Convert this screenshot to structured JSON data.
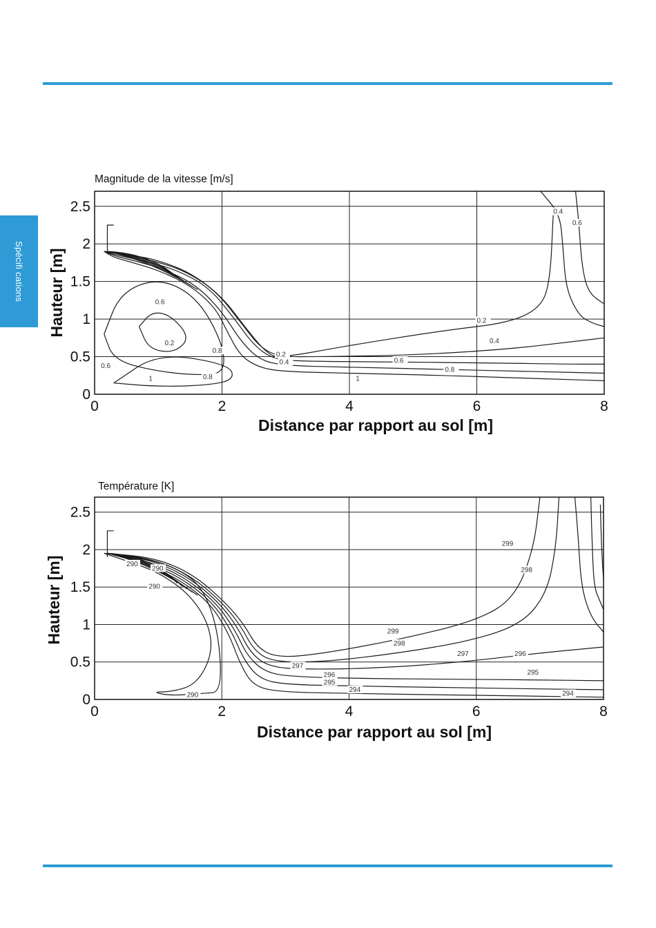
{
  "page": {
    "accent_color": "#2e9bd6",
    "side_tab_label": "Spécifi cations"
  },
  "chart_data": [
    {
      "type": "contour",
      "title": "Magnitude de la vitesse [m/s]",
      "xlabel": "Distance par rapport au sol [m]",
      "ylabel": "Hauteur [m]",
      "xlim": [
        0,
        8
      ],
      "ylim": [
        0,
        2.7
      ],
      "xticks": [
        "0",
        "2",
        "4",
        "6",
        "8"
      ],
      "yticks": [
        "0",
        "0.5",
        "1",
        "1.5",
        "2",
        "2.5"
      ],
      "grid": true,
      "contour_labels": [
        "0.4",
        "0.6",
        "0.2",
        "0.6",
        "0.8",
        "0.2",
        "0.4",
        "0.6",
        "0.8",
        "1",
        "0.2",
        "0.4",
        "0.6",
        "0.8",
        "1"
      ],
      "contours": [
        {
          "level": 0.2,
          "x": [
            0.7,
            0.9,
            1.2,
            1.5,
            1.25,
            0.85,
            0.7
          ],
          "y": [
            0.9,
            1.1,
            1.05,
            0.75,
            0.55,
            0.6,
            0.9
          ]
        },
        {
          "level": 0.6,
          "x": [
            0.15,
            0.4,
            1.0,
            1.6,
            2.0,
            2.05,
            1.7,
            1.0,
            0.3,
            0.15
          ],
          "y": [
            0.8,
            1.35,
            1.55,
            1.3,
            0.7,
            0.3,
            0.25,
            0.3,
            0.45,
            0.8
          ]
        },
        {
          "level": 0.8,
          "x": [
            0.3,
            1.0,
            1.8,
            2.2,
            2.1,
            1.0,
            0.3
          ],
          "y": [
            0.15,
            0.1,
            0.12,
            0.2,
            0.4,
            0.55,
            0.15
          ]
        },
        {
          "level": 1.0,
          "x": [
            0.15,
            0.3,
            0.6,
            1.0,
            1.5,
            1.9,
            2.1,
            2.3,
            2.6,
            3.0,
            4.0,
            5.5,
            6.5,
            7.3,
            8.0
          ],
          "y": [
            1.9,
            1.82,
            1.75,
            1.65,
            1.45,
            1.15,
            0.8,
            0.5,
            0.35,
            0.3,
            0.28,
            0.25,
            0.22,
            0.2,
            0.18
          ]
        },
        {
          "level": 0.8,
          "x": [
            0.15,
            0.35,
            0.7,
            1.1,
            1.6,
            2.0,
            2.3,
            2.6,
            3.0,
            4.0,
            5.5,
            7.0,
            8.0
          ],
          "y": [
            1.9,
            1.83,
            1.76,
            1.66,
            1.45,
            1.1,
            0.7,
            0.45,
            0.38,
            0.36,
            0.33,
            0.3,
            0.28
          ]
        },
        {
          "level": 0.6,
          "x": [
            0.15,
            0.4,
            0.8,
            1.3,
            1.8,
            2.2,
            2.5,
            2.8,
            3.2,
            4.5,
            6.0,
            7.5,
            8.0
          ],
          "y": [
            1.9,
            1.84,
            1.77,
            1.65,
            1.42,
            1.0,
            0.65,
            0.47,
            0.44,
            0.43,
            0.42,
            0.4,
            0.4
          ]
        },
        {
          "level": 0.4,
          "x": [
            0.15,
            0.5,
            0.9,
            1.4,
            1.9,
            2.3,
            2.6,
            2.9,
            3.5,
            5.0,
            6.5,
            7.5,
            8.0
          ],
          "y": [
            1.9,
            1.85,
            1.78,
            1.65,
            1.38,
            0.95,
            0.62,
            0.5,
            0.5,
            0.52,
            0.6,
            0.7,
            0.75
          ]
        },
        {
          "level": 0.2,
          "x": [
            0.15,
            0.6,
            1.0,
            1.5,
            2.0,
            2.4,
            2.7,
            2.9,
            4.0,
            5.5,
            6.5,
            7.0,
            7.15,
            7.2
          ],
          "y": [
            1.9,
            1.85,
            1.78,
            1.62,
            1.3,
            0.85,
            0.55,
            0.48,
            0.65,
            0.85,
            0.95,
            1.15,
            1.5,
            2.4
          ]
        },
        {
          "level": 0.4,
          "x": [
            7.0,
            7.3,
            7.35,
            7.4,
            7.6,
            7.8,
            8.0
          ],
          "y": [
            2.7,
            2.4,
            2.0,
            1.4,
            1.05,
            0.95,
            0.9
          ]
        },
        {
          "level": 0.6,
          "x": [
            7.55,
            7.6,
            7.65,
            7.75,
            8.0
          ],
          "y": [
            2.7,
            2.3,
            1.7,
            1.35,
            1.2
          ]
        }
      ]
    },
    {
      "type": "contour",
      "title": "Température [K]",
      "xlabel": "Distance par rapport au sol [m]",
      "ylabel": "Hauteur [m]",
      "xlim": [
        0,
        8
      ],
      "ylim": [
        0,
        2.7
      ],
      "xticks": [
        "0",
        "2",
        "4",
        "6",
        "8"
      ],
      "yticks": [
        "0",
        "0.5",
        "1",
        "1.5",
        "2",
        "2.5"
      ],
      "grid": true,
      "contour_labels": [
        "299",
        "298",
        "297",
        "296",
        "295",
        "294",
        "299",
        "298",
        "297",
        "296",
        "295",
        "294",
        "290",
        "290",
        "290",
        "290"
      ],
      "contours": [
        {
          "level": 290,
          "x": [
            0.15,
            0.5,
            1.0,
            1.5,
            1.8,
            1.85,
            1.6,
            1.2,
            0.9,
            1.2,
            1.7,
            2.0,
            1.95,
            1.7,
            1.3,
            0.8,
            0.4,
            0.15
          ],
          "y": [
            1.95,
            1.85,
            1.7,
            1.4,
            1.0,
            0.6,
            0.2,
            0.1,
            0.1,
            0.05,
            0.08,
            0.1,
            0.9,
            1.5,
            1.75,
            1.88,
            1.93,
            1.95
          ]
        },
        {
          "level": 294,
          "x": [
            0.2,
            0.7,
            1.3,
            1.8,
            2.1,
            2.3,
            2.5,
            2.9,
            4.0,
            5.5,
            6.5,
            7.2,
            8.0
          ],
          "y": [
            1.95,
            1.84,
            1.62,
            1.3,
            0.9,
            0.45,
            0.18,
            0.1,
            0.08,
            0.06,
            0.05,
            0.04,
            0.03
          ]
        },
        {
          "level": 295,
          "x": [
            0.2,
            0.75,
            1.35,
            1.85,
            2.15,
            2.35,
            2.6,
            3.0,
            4.0,
            5.5,
            7.0,
            8.0
          ],
          "y": [
            1.95,
            1.85,
            1.63,
            1.3,
            0.92,
            0.52,
            0.27,
            0.2,
            0.18,
            0.16,
            0.14,
            0.13
          ]
        },
        {
          "level": 296,
          "x": [
            0.2,
            0.8,
            1.4,
            1.9,
            2.2,
            2.4,
            2.7,
            3.2,
            4.2,
            5.6,
            7.0,
            8.0
          ],
          "y": [
            1.95,
            1.86,
            1.64,
            1.3,
            0.94,
            0.58,
            0.35,
            0.3,
            0.28,
            0.27,
            0.26,
            0.25
          ]
        },
        {
          "level": 297,
          "x": [
            0.2,
            0.85,
            1.45,
            1.95,
            2.25,
            2.45,
            2.75,
            3.4,
            4.5,
            5.8,
            7.0,
            8.0
          ],
          "y": [
            1.95,
            1.87,
            1.65,
            1.3,
            0.96,
            0.62,
            0.43,
            0.4,
            0.42,
            0.5,
            0.62,
            0.7
          ]
        },
        {
          "level": 298,
          "x": [
            0.2,
            0.9,
            1.5,
            2.0,
            2.3,
            2.5,
            2.8,
            3.6,
            4.8,
            5.9,
            6.7,
            7.1,
            7.25,
            7.3
          ],
          "y": [
            1.95,
            1.88,
            1.66,
            1.3,
            0.98,
            0.66,
            0.5,
            0.5,
            0.62,
            0.78,
            1.0,
            1.4,
            2.0,
            2.7
          ]
        },
        {
          "level": 299,
          "x": [
            0.2,
            0.95,
            1.55,
            2.05,
            2.35,
            2.55,
            2.85,
            3.5,
            4.8,
            6.0,
            6.6,
            6.9,
            7.0
          ],
          "y": [
            1.95,
            1.89,
            1.67,
            1.3,
            1.0,
            0.7,
            0.56,
            0.6,
            0.8,
            1.05,
            1.35,
            2.0,
            2.7
          ]
        },
        {
          "level": 297,
          "x": [
            7.55,
            7.6,
            7.65,
            7.8,
            8.0
          ],
          "y": [
            2.7,
            2.2,
            1.5,
            1.1,
            0.9
          ]
        },
        {
          "level": 296,
          "x": [
            7.8,
            7.82,
            7.85,
            7.95,
            8.0
          ],
          "y": [
            2.7,
            2.1,
            1.5,
            1.3,
            1.2
          ]
        },
        {
          "level": 295,
          "x": [
            7.95,
            7.97,
            8.0
          ],
          "y": [
            2.6,
            2.0,
            1.6
          ]
        }
      ]
    }
  ]
}
